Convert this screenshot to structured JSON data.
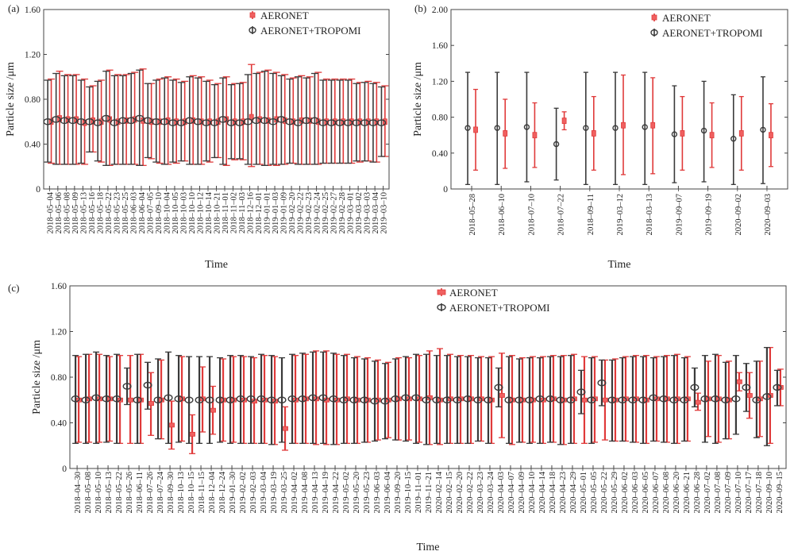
{
  "colors": {
    "aeronet": "#e03a3a",
    "combined": "#3a3a3a",
    "axis": "#444444"
  },
  "chart_data": [
    {
      "panel_label": "(a)",
      "type": "errorbar",
      "ylabel": "Particle size /μm",
      "xlabel": "Time",
      "ylim": [
        0,
        1.6
      ],
      "yticks": [
        "0",
        "0.40",
        "0.80",
        "1.20",
        "1.60"
      ],
      "ytick_values": [
        0,
        0.4,
        0.8,
        1.2,
        1.6
      ],
      "legend": [
        "AERONET",
        "AERONET+TROPOMI"
      ],
      "legend_position": "top-right",
      "categories": [
        "2018–05–04",
        "2018–05–06",
        "2018–05–08",
        "2018–05–09",
        "2018–05–13",
        "2018–05–16",
        "2018–05–18",
        "2018–05–22",
        "2018–05–23",
        "2018–05–25",
        "2018–06–03",
        "2018–06–04",
        "2018–07–05",
        "2018–09–10",
        "2018–10–04",
        "2018–10–05",
        "2018–10–03",
        "2018–10–10",
        "2018–10–12",
        "2018–10–14",
        "2018–10–21",
        "2018–11–01",
        "2018–11–02",
        "2018–11–03",
        "2018–12–16",
        "2018–12–01",
        "2019–01–01",
        "2019–01–03",
        "2019–01–09",
        "2019–02–20",
        "2019–02–22",
        "2019–02–23",
        "2019–02–24",
        "2019–02–25",
        "2019–02–27",
        "2019–02–28",
        "2019–03–01",
        "2019–03–02",
        "2019–03–03",
        "2019–03–04",
        "2019–03–10"
      ],
      "series": [
        {
          "name": "AERONET",
          "values": [
            0.6,
            0.63,
            0.62,
            0.62,
            0.59,
            0.61,
            0.6,
            0.62,
            0.6,
            0.61,
            0.62,
            0.61,
            0.6,
            0.6,
            0.61,
            0.6,
            0.6,
            0.61,
            0.6,
            0.6,
            0.6,
            0.62,
            0.6,
            0.6,
            0.64,
            0.62,
            0.61,
            0.62,
            0.61,
            0.6,
            0.61,
            0.61,
            0.6,
            0.6,
            0.6,
            0.6,
            0.6,
            0.6,
            0.6,
            0.6,
            0.6
          ],
          "upper": [
            0.98,
            1.05,
            1.02,
            1.02,
            0.98,
            0.92,
            0.97,
            1.06,
            1.02,
            1.02,
            1.04,
            1.07,
            0.94,
            0.98,
            1.0,
            0.98,
            0.96,
            1.01,
            1.0,
            0.97,
            0.94,
            1.0,
            0.94,
            0.95,
            1.11,
            1.04,
            1.06,
            1.04,
            1.02,
            0.99,
            1.01,
            1.0,
            1.04,
            0.98,
            0.98,
            0.98,
            0.98,
            0.95,
            0.96,
            0.95,
            0.92
          ],
          "lower": [
            0.23,
            0.22,
            0.22,
            0.22,
            0.22,
            0.33,
            0.24,
            0.21,
            0.22,
            0.22,
            0.22,
            0.21,
            0.27,
            0.23,
            0.22,
            0.23,
            0.25,
            0.22,
            0.22,
            0.24,
            0.28,
            0.21,
            0.26,
            0.26,
            0.2,
            0.22,
            0.21,
            0.21,
            0.22,
            0.23,
            0.22,
            0.22,
            0.22,
            0.23,
            0.23,
            0.23,
            0.23,
            0.24,
            0.25,
            0.24,
            0.29
          ]
        },
        {
          "name": "AERONET+TROPOMI",
          "values": [
            0.6,
            0.62,
            0.61,
            0.61,
            0.6,
            0.6,
            0.59,
            0.63,
            0.59,
            0.61,
            0.61,
            0.63,
            0.61,
            0.6,
            0.6,
            0.59,
            0.59,
            0.61,
            0.6,
            0.59,
            0.59,
            0.62,
            0.59,
            0.59,
            0.6,
            0.61,
            0.61,
            0.6,
            0.62,
            0.6,
            0.59,
            0.61,
            0.61,
            0.59,
            0.59,
            0.59,
            0.59,
            0.59,
            0.59,
            0.59,
            0.59
          ],
          "upper": [
            0.97,
            1.03,
            1.01,
            1.01,
            0.97,
            0.91,
            0.96,
            1.05,
            1.01,
            1.01,
            1.03,
            1.06,
            0.94,
            0.97,
            0.99,
            0.97,
            0.95,
            1.0,
            0.99,
            0.96,
            0.93,
            0.99,
            0.93,
            0.94,
            1.02,
            1.03,
            1.05,
            1.03,
            1.01,
            0.98,
            1.0,
            0.99,
            1.03,
            0.97,
            0.97,
            0.97,
            0.97,
            0.94,
            0.95,
            0.94,
            0.91
          ],
          "lower": [
            0.24,
            0.22,
            0.22,
            0.22,
            0.23,
            0.33,
            0.25,
            0.21,
            0.22,
            0.22,
            0.22,
            0.21,
            0.28,
            0.24,
            0.22,
            0.24,
            0.25,
            0.22,
            0.22,
            0.25,
            0.28,
            0.22,
            0.27,
            0.27,
            0.22,
            0.22,
            0.21,
            0.22,
            0.22,
            0.23,
            0.22,
            0.22,
            0.22,
            0.23,
            0.23,
            0.23,
            0.23,
            0.25,
            0.25,
            0.24,
            0.29
          ]
        }
      ]
    },
    {
      "panel_label": "(b)",
      "type": "errorbar",
      "ylabel": "Particle size /μm",
      "xlabel": "Time",
      "ylim": [
        0,
        2.0
      ],
      "yticks": [
        "0",
        "0.40",
        "0.80",
        "1.20",
        "1.60",
        "2.00"
      ],
      "ytick_values": [
        0,
        0.4,
        0.8,
        1.2,
        1.6,
        2.0
      ],
      "legend": [
        "AERONET",
        "AERONET+TROPOMI"
      ],
      "legend_position": "top-right",
      "categories": [
        "2018–05–28",
        "2018–06–10",
        "2018–07–10",
        "2018–07–22",
        "2018–09–11",
        "2019–03–12",
        "2018–03–13",
        "2019–09–07",
        "2019–09–19",
        "2020–09–02",
        "2020–09–03"
      ],
      "series": [
        {
          "name": "AERONET",
          "values": [
            0.66,
            0.62,
            0.6,
            0.76,
            0.62,
            0.71,
            0.71,
            0.62,
            0.6,
            0.62,
            0.6
          ],
          "upper": [
            1.11,
            1.0,
            0.96,
            0.86,
            1.03,
            1.27,
            1.24,
            1.03,
            0.96,
            1.03,
            0.95
          ],
          "lower": [
            0.21,
            0.23,
            0.24,
            0.66,
            0.21,
            0.16,
            0.17,
            0.21,
            0.24,
            0.21,
            0.25
          ]
        },
        {
          "name": "AERONET+TROPOMI",
          "values": [
            0.68,
            0.68,
            0.69,
            0.5,
            0.68,
            0.68,
            0.69,
            0.61,
            0.65,
            0.56,
            0.66
          ],
          "upper": [
            1.3,
            1.3,
            1.3,
            0.9,
            1.3,
            1.3,
            1.3,
            1.15,
            1.2,
            1.05,
            1.25
          ],
          "lower": [
            0.05,
            0.05,
            0.08,
            0.1,
            0.05,
            0.05,
            0.05,
            0.07,
            0.08,
            0.05,
            0.06
          ]
        }
      ]
    },
    {
      "panel_label": "(c)",
      "type": "errorbar",
      "ylabel": "Particle size /μm",
      "xlabel": "Time",
      "ylim": [
        0,
        1.6
      ],
      "yticks": [
        "0",
        "0.40",
        "0.80",
        "1.20",
        "1.60"
      ],
      "ytick_values": [
        0,
        0.4,
        0.8,
        1.2,
        1.6
      ],
      "legend": [
        "AERONET",
        "AERONET+TROPOMI"
      ],
      "legend_position": "top-center",
      "categories": [
        "2018–04–30",
        "2018–05–08",
        "2018–05–10",
        "2018–05–13",
        "2018–05–22",
        "2018–05–26",
        "2018–06–11",
        "2018–07–26",
        "2018–07–24",
        "2018–09–30",
        "2018–10–13",
        "2018–10–15",
        "2018–11–15",
        "2018–12–04",
        "2018–12–24",
        "2019–01–30",
        "2019–02–02",
        "2019–02–03",
        "2019–03–04",
        "2019–03–19",
        "2019–03–25",
        "2019–04–02",
        "2019–04–08",
        "2019–04–13",
        "2019–04–19",
        "2019–04–22",
        "2019–05–02",
        "2019–05–20",
        "2019–05–23",
        "2019–06–03",
        "2019–06–04",
        "2019–09–20",
        "2019–10–15",
        "2019–11–01",
        "2019–11–21",
        "2020–02–14",
        "2020–02–15",
        "2020–02–20",
        "2020–02–22",
        "2020–03–23",
        "2020–03–24",
        "2020–04–03",
        "2020–04–07",
        "2020–04–09",
        "2020–04–10",
        "2020–04–14",
        "2020–04–18",
        "2020–04–23",
        "2020–04–29",
        "2020–05–01",
        "2020–05–05",
        "2020–05–22",
        "2020–05–29",
        "2020–06–02",
        "2020–06–03",
        "2020–06–05",
        "2020–06–07",
        "2020–06–08",
        "2020–06–20",
        "2020–06–21",
        "2020–06–28",
        "2020–07–02",
        "2020–07–08",
        "2020–07–09",
        "2020–07–10",
        "2020–07–17",
        "2020–07–18",
        "2020–09–10",
        "2020–09–15"
      ],
      "series": [
        {
          "name": "AERONET",
          "values": [
            0.6,
            0.61,
            0.61,
            0.61,
            0.6,
            0.6,
            0.6,
            0.57,
            0.6,
            0.38,
            0.61,
            0.3,
            0.61,
            0.51,
            0.6,
            0.6,
            0.6,
            0.59,
            0.6,
            0.59,
            0.35,
            0.6,
            0.61,
            0.61,
            0.6,
            0.6,
            0.61,
            0.6,
            0.6,
            0.6,
            0.6,
            0.61,
            0.61,
            0.61,
            0.62,
            0.6,
            0.61,
            0.61,
            0.61,
            0.61,
            0.6,
            0.64,
            0.6,
            0.6,
            0.6,
            0.6,
            0.61,
            0.6,
            0.61,
            0.6,
            0.61,
            0.6,
            0.6,
            0.61,
            0.61,
            0.6,
            0.61,
            0.61,
            0.61,
            0.61,
            0.58,
            0.61,
            0.61,
            0.6,
            0.76,
            0.64,
            0.61,
            0.64,
            0.71
          ],
          "upper": [
            0.98,
            1.0,
            1.0,
            0.98,
            0.99,
            0.99,
            1.0,
            0.84,
            0.95,
            0.59,
            0.98,
            0.47,
            0.89,
            0.72,
            0.96,
            0.98,
            0.98,
            0.97,
            0.99,
            0.98,
            0.54,
            0.99,
            1.0,
            1.03,
            1.03,
            1.0,
            1.0,
            0.98,
            0.97,
            0.95,
            0.93,
            0.97,
            0.97,
            0.99,
            1.03,
            1.05,
            1.0,
            0.99,
            0.99,
            0.98,
            0.98,
            1.01,
            0.99,
            0.97,
            0.98,
            0.98,
            0.99,
            0.99,
            1.0,
            0.98,
            0.98,
            0.95,
            0.96,
            0.98,
            0.99,
            0.99,
            0.98,
            0.99,
            1.0,
            0.98,
            0.66,
            0.94,
            0.99,
            0.94,
            0.84,
            0.84,
            0.94,
            1.06,
            0.87
          ],
          "lower": [
            0.23,
            0.23,
            0.23,
            0.24,
            0.22,
            0.22,
            0.22,
            0.29,
            0.26,
            0.17,
            0.24,
            0.13,
            0.32,
            0.3,
            0.24,
            0.23,
            0.22,
            0.22,
            0.22,
            0.21,
            0.16,
            0.22,
            0.22,
            0.21,
            0.21,
            0.21,
            0.22,
            0.22,
            0.23,
            0.25,
            0.27,
            0.25,
            0.25,
            0.23,
            0.21,
            0.21,
            0.22,
            0.22,
            0.22,
            0.24,
            0.22,
            0.27,
            0.21,
            0.23,
            0.23,
            0.22,
            0.23,
            0.21,
            0.22,
            0.22,
            0.23,
            0.25,
            0.24,
            0.24,
            0.23,
            0.22,
            0.24,
            0.23,
            0.22,
            0.24,
            0.51,
            0.28,
            0.23,
            0.26,
            0.68,
            0.44,
            0.28,
            0.22,
            0.55
          ]
        },
        {
          "name": "AERONET+TROPOMI",
          "values": [
            0.61,
            0.6,
            0.62,
            0.61,
            0.61,
            0.72,
            0.6,
            0.73,
            0.6,
            0.62,
            0.61,
            0.6,
            0.6,
            0.6,
            0.6,
            0.6,
            0.61,
            0.61,
            0.61,
            0.6,
            0.6,
            0.61,
            0.61,
            0.62,
            0.62,
            0.61,
            0.6,
            0.6,
            0.6,
            0.59,
            0.59,
            0.61,
            0.62,
            0.62,
            0.6,
            0.6,
            0.6,
            0.6,
            0.61,
            0.6,
            0.6,
            0.71,
            0.6,
            0.6,
            0.6,
            0.61,
            0.61,
            0.6,
            0.6,
            0.67,
            0.6,
            0.75,
            0.6,
            0.6,
            0.6,
            0.6,
            0.62,
            0.61,
            0.6,
            0.6,
            0.71,
            0.61,
            0.61,
            0.6,
            0.61,
            0.71,
            0.6,
            0.63,
            0.71
          ],
          "upper": [
            0.99,
            1.0,
            1.02,
            0.99,
            1.0,
            0.88,
            1.0,
            0.93,
            0.96,
            1.02,
            0.99,
            0.98,
            0.98,
            0.98,
            0.97,
            0.99,
            0.99,
            0.98,
            1.0,
            0.99,
            0.97,
            1.0,
            1.01,
            1.02,
            1.02,
            1.01,
            0.99,
            0.97,
            0.96,
            0.94,
            0.92,
            0.96,
            0.98,
            1.0,
            1.0,
            0.99,
            0.99,
            0.98,
            0.98,
            0.97,
            0.97,
            0.88,
            0.98,
            0.96,
            0.97,
            0.97,
            0.98,
            0.98,
            0.99,
            0.86,
            0.97,
            0.95,
            0.95,
            0.97,
            0.98,
            0.98,
            0.97,
            0.98,
            0.99,
            0.97,
            0.88,
            0.99,
            1.0,
            0.93,
            0.99,
            0.92,
            0.94,
            1.06,
            0.86
          ],
          "lower": [
            0.22,
            0.22,
            0.22,
            0.23,
            0.22,
            0.56,
            0.22,
            0.52,
            0.26,
            0.22,
            0.23,
            0.22,
            0.22,
            0.22,
            0.23,
            0.22,
            0.22,
            0.22,
            0.22,
            0.21,
            0.23,
            0.22,
            0.22,
            0.22,
            0.22,
            0.21,
            0.22,
            0.22,
            0.23,
            0.24,
            0.26,
            0.25,
            0.24,
            0.22,
            0.21,
            0.22,
            0.22,
            0.22,
            0.22,
            0.24,
            0.22,
            0.54,
            0.22,
            0.23,
            0.22,
            0.22,
            0.23,
            0.21,
            0.22,
            0.48,
            0.22,
            0.55,
            0.24,
            0.24,
            0.23,
            0.22,
            0.24,
            0.23,
            0.22,
            0.24,
            0.54,
            0.23,
            0.22,
            0.26,
            0.3,
            0.5,
            0.27,
            0.2,
            0.55
          ]
        }
      ]
    }
  ]
}
